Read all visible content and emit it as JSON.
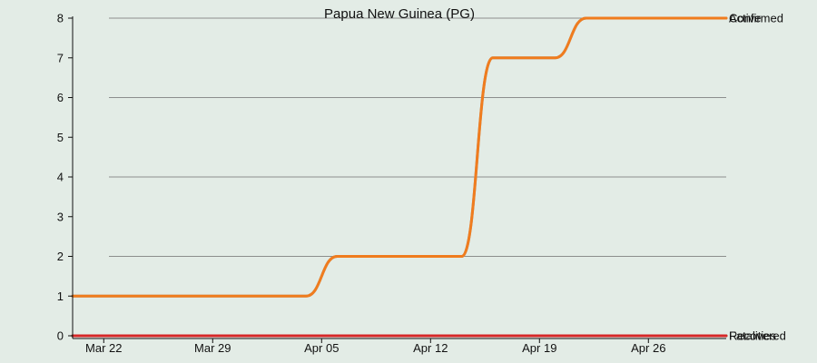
{
  "chart_data": {
    "type": "line",
    "title": "Papua New Guinea (PG)",
    "xlabel": "",
    "ylabel": "",
    "x_start": "Mar 20",
    "x_end": "May 1",
    "x_ticks": [
      "Mar 22",
      "Mar 29",
      "Apr 05",
      "Apr 12",
      "Apr 19",
      "Apr 26"
    ],
    "ylim": [
      0,
      8
    ],
    "y_ticks": [
      "0",
      "1",
      "2",
      "3",
      "4",
      "5",
      "6",
      "7",
      "8"
    ],
    "grid": true,
    "legend": "none",
    "series": [
      {
        "name": "Confirmed",
        "color": "#9a9a9a",
        "x": [
          "Mar 20",
          "Apr 04",
          "Apr 06",
          "Apr 14",
          "Apr 16",
          "Apr 20",
          "Apr 22",
          "May 1"
        ],
        "values": [
          1,
          1,
          2,
          2,
          7,
          7,
          8,
          8
        ]
      },
      {
        "name": "Active",
        "color": "#f07c1e",
        "x": [
          "Mar 20",
          "Apr 04",
          "Apr 06",
          "Apr 14",
          "Apr 16",
          "Apr 20",
          "Apr 22",
          "May 1"
        ],
        "values": [
          1,
          1,
          2,
          2,
          7,
          7,
          8,
          8
        ]
      },
      {
        "name": "Recovered",
        "color": "#2ca02c",
        "x": [
          "Mar 20",
          "May 1"
        ],
        "values": [
          0,
          0
        ]
      },
      {
        "name": "Fatalities",
        "color": "#d62728",
        "x": [
          "Mar 20",
          "May 1"
        ],
        "values": [
          0,
          0
        ]
      }
    ]
  }
}
